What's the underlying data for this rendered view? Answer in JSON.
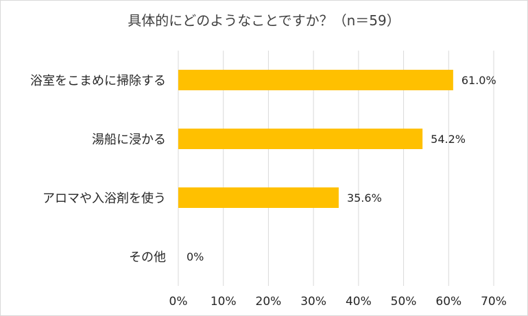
{
  "chart_data": {
    "type": "bar",
    "orientation": "horizontal",
    "title": "具体的にどのようなことですか？（n＝59）",
    "categories": [
      "浴室をこまめに掃除する",
      "湯船に浸かる",
      "アロマや入浴剤を使う",
      "その他"
    ],
    "values": [
      61.0,
      54.2,
      35.6,
      0
    ],
    "data_labels": [
      "61.0%",
      "54.2%",
      "35.6%",
      "0%"
    ],
    "x_ticks": [
      "0%",
      "10%",
      "20%",
      "30%",
      "40%",
      "50%",
      "60%",
      "70%"
    ],
    "xlim": [
      0,
      70
    ],
    "grid": true,
    "bar_color": "#FFC000",
    "grid_color": "#D9D9D9"
  }
}
